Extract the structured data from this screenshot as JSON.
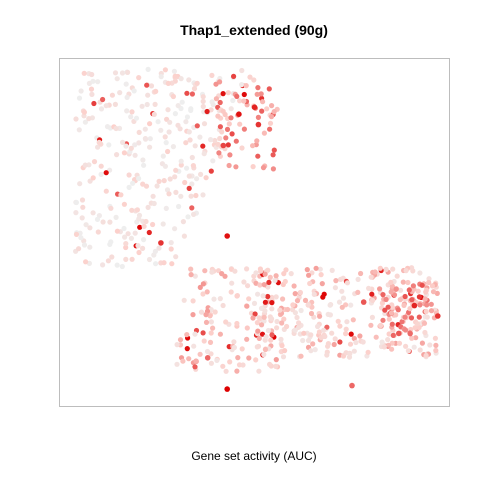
{
  "chart_data": {
    "type": "scatter",
    "title": "Thap1_extended (90g)",
    "xlabel": "Gene set activity (AUC)",
    "ylabel": "",
    "xlim": [
      0,
      100
    ],
    "ylim": [
      0,
      100
    ],
    "axes_visible": false,
    "grid": false,
    "legend": "none",
    "color_scale": {
      "low": "#eeeeee",
      "mid": "#fcd0cb",
      "high": "#dd0000"
    },
    "clusters": [
      {
        "name": "upper-left",
        "x_range": [
          4,
          50
        ],
        "y_range": [
          40,
          97
        ],
        "mean_activity": 0.18
      },
      {
        "name": "upper-right-fringe",
        "x_range": [
          40,
          56
        ],
        "y_range": [
          68,
          94
        ],
        "mean_activity": 0.55
      },
      {
        "name": "bridge",
        "x_range": [
          30,
          56
        ],
        "y_range": [
          10,
          40
        ],
        "mean_activity": 0.35
      },
      {
        "name": "lower-right",
        "x_range": [
          50,
          97
        ],
        "y_range": [
          14,
          40
        ],
        "mean_activity": 0.32
      },
      {
        "name": "right-edge",
        "x_range": [
          82,
          97
        ],
        "y_range": [
          20,
          36
        ],
        "mean_activity": 0.55
      }
    ],
    "highlight_points": [
      {
        "x": 46,
        "y": 84,
        "value": 0.95
      },
      {
        "x": 50,
        "y": 86,
        "value": 0.9
      },
      {
        "x": 51,
        "y": 81,
        "value": 0.85
      },
      {
        "x": 42,
        "y": 75,
        "value": 0.8
      },
      {
        "x": 43,
        "y": 49,
        "value": 0.95
      },
      {
        "x": 26,
        "y": 47,
        "value": 0.85
      },
      {
        "x": 43,
        "y": 5,
        "value": 1.0
      },
      {
        "x": 91,
        "y": 29,
        "value": 0.9
      },
      {
        "x": 97,
        "y": 26,
        "value": 0.85
      },
      {
        "x": 78,
        "y": 30,
        "value": 0.75
      },
      {
        "x": 75,
        "y": 6,
        "value": 0.7
      },
      {
        "x": 87,
        "y": 21,
        "value": 0.75
      },
      {
        "x": 38,
        "y": 14,
        "value": 0.7
      }
    ]
  }
}
